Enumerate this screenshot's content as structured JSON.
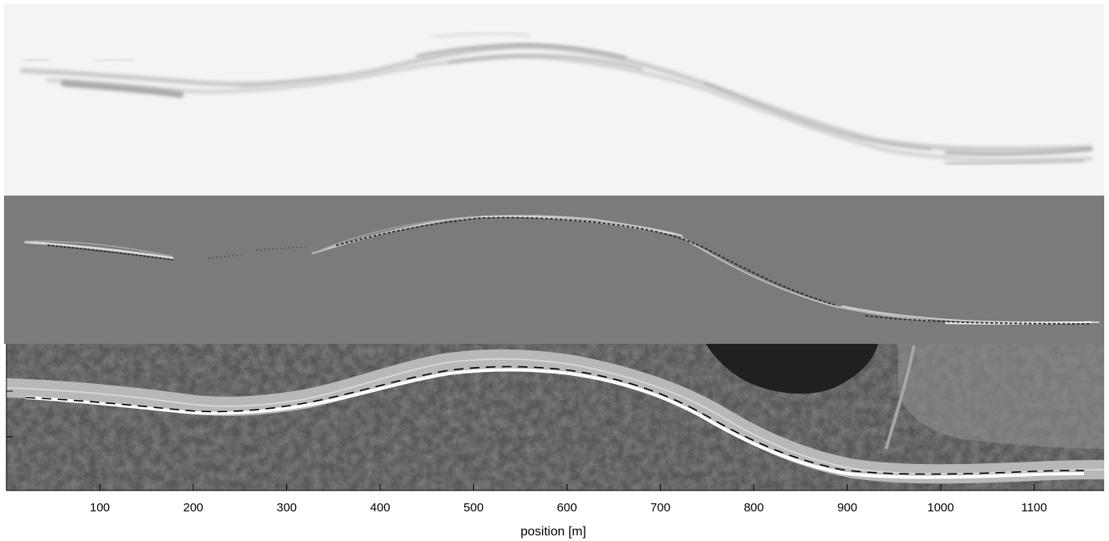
{
  "panels": [
    {
      "name": "top",
      "description_color": "#f3f3f3"
    },
    {
      "name": "middle",
      "description_color": "#7a7a7a"
    },
    {
      "name": "bottom",
      "description_color": "#3a3a3a"
    }
  ],
  "x_axis": {
    "label": "position [m]",
    "range": [
      0,
      1175
    ],
    "ticks": [
      100,
      200,
      300,
      400,
      500,
      600,
      700,
      800,
      900,
      1000,
      1100
    ],
    "tick_labels": [
      "100",
      "200",
      "300",
      "400",
      "500",
      "600",
      "700",
      "800",
      "900",
      "1000",
      "1100"
    ]
  },
  "colors": {
    "top_bg": "#f4f4f4",
    "middle_bg": "#7b7b7b",
    "road": "#b8b8b8",
    "forest": "#3c3c3c",
    "lake": "#1e1e1e",
    "track": "#ffffff",
    "dashed": "#000000"
  }
}
